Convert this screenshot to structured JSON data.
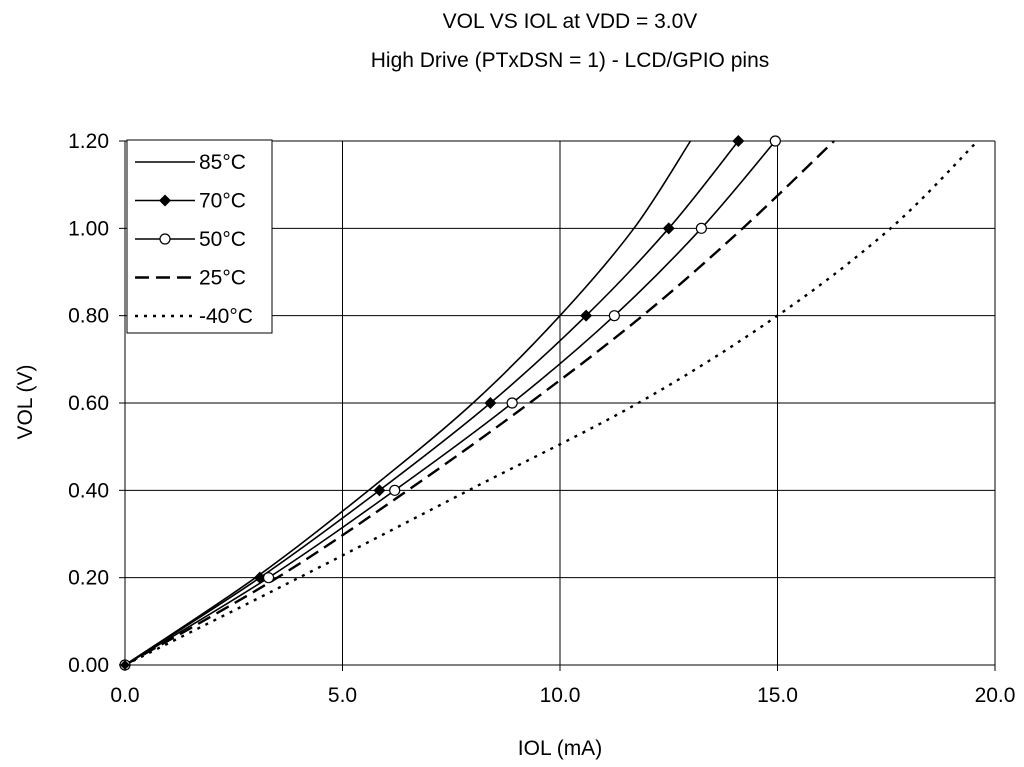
{
  "chart_data": {
    "type": "line",
    "title": "VOL VS IOL at VDD = 3.0V",
    "subtitle": "High Drive (PTxDSN = 1) - LCD/GPIO pins",
    "xlabel": "IOL (mA)",
    "ylabel": "VOL (V)",
    "xlim": [
      0,
      20
    ],
    "ylim": [
      0,
      1.2
    ],
    "x_ticks": [
      "0.0",
      "5.0",
      "10.0",
      "15.0",
      "20.0"
    ],
    "y_ticks": [
      "0.00",
      "0.20",
      "0.40",
      "0.60",
      "0.80",
      "1.00",
      "1.20"
    ],
    "grid": true,
    "legend_position": "top-left",
    "series": [
      {
        "name": "85°C",
        "style": "solid",
        "marker": "none",
        "color": "#000000",
        "points": [
          [
            0,
            0
          ],
          [
            3.0,
            0.2
          ],
          [
            5.6,
            0.4
          ],
          [
            8.0,
            0.6
          ],
          [
            10.0,
            0.8
          ],
          [
            11.7,
            1.0
          ],
          [
            13.0,
            1.2
          ]
        ]
      },
      {
        "name": "70°C",
        "style": "solid",
        "marker": "diamond",
        "color": "#000000",
        "points": [
          [
            0,
            0
          ],
          [
            3.1,
            0.2
          ],
          [
            5.85,
            0.4
          ],
          [
            8.4,
            0.6
          ],
          [
            10.6,
            0.8
          ],
          [
            12.5,
            1.0
          ],
          [
            14.1,
            1.2
          ]
        ]
      },
      {
        "name": "50°C",
        "style": "solid",
        "marker": "open-circle",
        "color": "#000000",
        "points": [
          [
            0,
            0
          ],
          [
            3.3,
            0.2
          ],
          [
            6.2,
            0.4
          ],
          [
            8.9,
            0.6
          ],
          [
            11.25,
            0.8
          ],
          [
            13.25,
            1.0
          ],
          [
            14.95,
            1.2
          ]
        ]
      },
      {
        "name": "25°C",
        "style": "dashed",
        "marker": "none",
        "color": "#000000",
        "points": [
          [
            0,
            0
          ],
          [
            3.5,
            0.2
          ],
          [
            6.5,
            0.4
          ],
          [
            9.3,
            0.6
          ],
          [
            11.9,
            0.8
          ],
          [
            14.2,
            1.0
          ],
          [
            16.3,
            1.2
          ]
        ]
      },
      {
        "name": "-40°C",
        "style": "dotted",
        "marker": "none",
        "color": "#000000",
        "points": [
          [
            0,
            0
          ],
          [
            4.0,
            0.2
          ],
          [
            7.9,
            0.4
          ],
          [
            11.8,
            0.6
          ],
          [
            15.0,
            0.8
          ],
          [
            17.6,
            1.0
          ],
          [
            19.6,
            1.2
          ]
        ]
      }
    ]
  }
}
